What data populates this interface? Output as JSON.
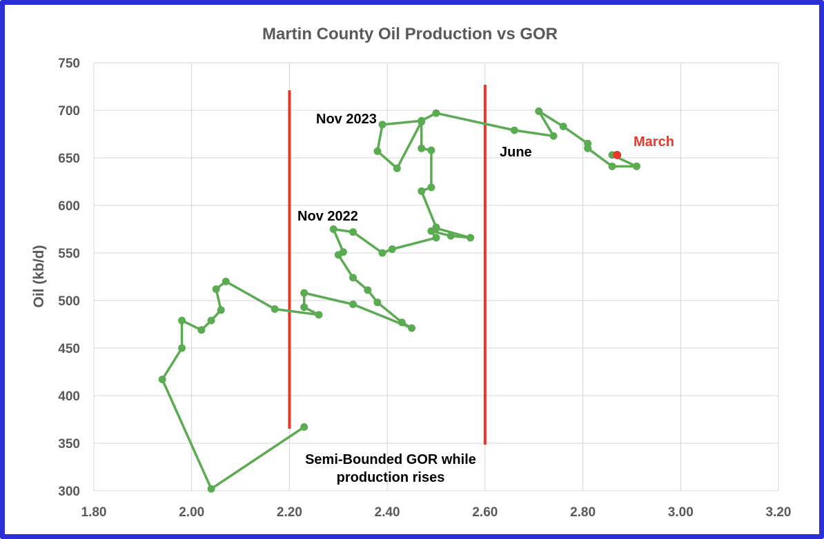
{
  "chart_data": {
    "type": "scatter",
    "title": "Martin County Oil Production vs GOR",
    "xlabel": "",
    "ylabel": "Oil (kb/d)",
    "xlim": [
      1.8,
      3.2
    ],
    "ylim": [
      300,
      750
    ],
    "x_ticks": [
      "1.80",
      "2.00",
      "2.20",
      "2.40",
      "2.60",
      "2.80",
      "3.00",
      "3.20"
    ],
    "y_ticks": [
      "300",
      "350",
      "400",
      "450",
      "500",
      "550",
      "600",
      "650",
      "700",
      "750"
    ],
    "grid": true,
    "legend": "none",
    "colors": {
      "series": "#5aab52",
      "highlight": "#e8382a",
      "reference_lines": "#e8382a",
      "frame": "#2b2fd6"
    },
    "series": [
      {
        "x": [
          2.23,
          2.04,
          1.94,
          1.98,
          1.98,
          2.02,
          2.04,
          2.06,
          2.05,
          2.07,
          2.17,
          2.26,
          2.23,
          2.23,
          2.33,
          2.45,
          2.43,
          2.38,
          2.36,
          2.33,
          2.3,
          2.31,
          2.29,
          2.33,
          2.39,
          2.41,
          2.5,
          2.49,
          2.53,
          2.57,
          2.5,
          2.5,
          2.47,
          2.49,
          2.49,
          2.47,
          2.47,
          2.42,
          2.38,
          2.39,
          2.47,
          2.5,
          2.66,
          2.74,
          2.71,
          2.76,
          2.81,
          2.81,
          2.86,
          2.91,
          2.86,
          2.87
        ],
        "y": [
          367,
          302,
          417,
          450,
          479,
          469,
          479,
          490,
          512,
          520,
          491,
          485,
          493,
          508,
          496,
          471,
          477,
          498,
          511,
          524,
          548,
          551,
          575,
          572,
          550,
          554,
          566,
          573,
          568,
          566,
          576,
          577,
          615,
          619,
          658,
          660,
          688,
          639,
          657,
          685,
          689,
          697,
          679,
          673,
          699,
          683,
          665,
          660,
          641,
          641,
          653,
          653
        ]
      }
    ],
    "highlight_point": {
      "label": "March",
      "x": 2.87,
      "y": 653
    },
    "reference_lines": [
      2.2,
      2.6
    ],
    "annotations": [
      "Nov 2023",
      "Nov 2022",
      "June",
      "March",
      "Semi-Bounded GOR while",
      "production rises"
    ]
  }
}
